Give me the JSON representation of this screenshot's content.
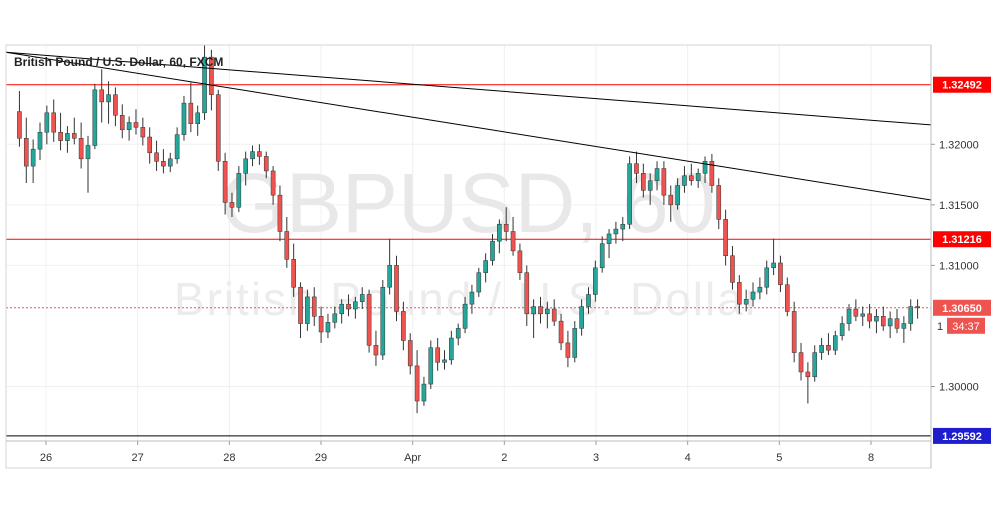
{
  "chart_data": {
    "type": "candlestick",
    "title": "British Pound / U.S. Dollar, 60, FXCM",
    "watermark": {
      "symbol": "GBPUSD, 60",
      "name": "British Pound / U.S. Dollar"
    },
    "x_tick_labels": [
      "26",
      "27",
      "28",
      "29",
      "Apr",
      "2",
      "3",
      "4",
      "5",
      "8"
    ],
    "y_tick_labels": [
      "1.32000",
      "1.31500",
      "1.31000",
      "1.30000"
    ],
    "y_ticks": [
      1.32,
      1.315,
      1.31,
      1.3
    ],
    "ylim": [
      1.2955,
      1.3282
    ],
    "grid": true,
    "colors": {
      "up": "#26a69a",
      "down": "#ef5350",
      "wick": "#333333",
      "level_line": "#ff0000",
      "trendline": "#000000",
      "current_price_label": "#ef5350",
      "bottom_label": "#1e1ecf"
    },
    "horizontal_levels": [
      {
        "value": 1.32492,
        "label": "1.32492"
      },
      {
        "value": 1.31216,
        "label": "1.31216"
      },
      {
        "value": 1.29592,
        "label": "1.29592",
        "color": "blue"
      }
    ],
    "current_price": {
      "value": 1.3065,
      "label": "1.30650",
      "countdown": "34:37",
      "truncated_label": "1"
    },
    "trendlines": [
      {
        "from": {
          "x": "Mar 26 00:00",
          "y": 1.3276
        },
        "to": {
          "x": "Apr 8 (last)",
          "y": 1.3216
        }
      },
      {
        "from": {
          "x": "Mar 26 00:00",
          "y": 1.3276
        },
        "to": {
          "x": "Apr 8 (last)",
          "y": 1.3154
        }
      }
    ],
    "candles": [
      [
        1.3227,
        1.3244,
        1.3198,
        1.3205
      ],
      [
        1.3205,
        1.3222,
        1.3168,
        1.3182
      ],
      [
        1.3182,
        1.3204,
        1.3168,
        1.3196
      ],
      [
        1.3196,
        1.3218,
        1.3187,
        1.321
      ],
      [
        1.321,
        1.3232,
        1.32,
        1.3226
      ],
      [
        1.3226,
        1.3237,
        1.3202,
        1.321
      ],
      [
        1.321,
        1.3226,
        1.3195,
        1.3203
      ],
      [
        1.3203,
        1.3215,
        1.3193,
        1.3209
      ],
      [
        1.3209,
        1.3222,
        1.32,
        1.3205
      ],
      [
        1.3205,
        1.3218,
        1.318,
        1.3188
      ],
      [
        1.3188,
        1.3207,
        1.316,
        1.3199
      ],
      [
        1.3199,
        1.325,
        1.3196,
        1.3245
      ],
      [
        1.3245,
        1.3262,
        1.3218,
        1.3235
      ],
      [
        1.3235,
        1.3252,
        1.3217,
        1.3241
      ],
      [
        1.3241,
        1.3247,
        1.3215,
        1.3224
      ],
      [
        1.3224,
        1.3233,
        1.3205,
        1.3212
      ],
      [
        1.3212,
        1.3223,
        1.3203,
        1.3218
      ],
      [
        1.3218,
        1.3229,
        1.3208,
        1.3214
      ],
      [
        1.3214,
        1.3222,
        1.3199,
        1.3206
      ],
      [
        1.3206,
        1.3214,
        1.3184,
        1.3193
      ],
      [
        1.3193,
        1.3203,
        1.3178,
        1.3186
      ],
      [
        1.3186,
        1.3196,
        1.3176,
        1.3182
      ],
      [
        1.3182,
        1.3193,
        1.3177,
        1.3188
      ],
      [
        1.3188,
        1.3214,
        1.3184,
        1.3208
      ],
      [
        1.3208,
        1.324,
        1.3203,
        1.3234
      ],
      [
        1.3234,
        1.3251,
        1.321,
        1.3217
      ],
      [
        1.3217,
        1.3232,
        1.3207,
        1.3226
      ],
      [
        1.3226,
        1.3282,
        1.322,
        1.3272
      ],
      [
        1.3272,
        1.3278,
        1.3228,
        1.3241
      ],
      [
        1.3241,
        1.3245,
        1.3178,
        1.3186
      ],
      [
        1.3186,
        1.3193,
        1.3142,
        1.3152
      ],
      [
        1.3152,
        1.316,
        1.314,
        1.3148
      ],
      [
        1.3148,
        1.3182,
        1.3144,
        1.3176
      ],
      [
        1.3176,
        1.3194,
        1.3166,
        1.3188
      ],
      [
        1.3188,
        1.3199,
        1.3182,
        1.3194
      ],
      [
        1.3194,
        1.32,
        1.3183,
        1.319
      ],
      [
        1.319,
        1.3194,
        1.3172,
        1.3178
      ],
      [
        1.3178,
        1.3182,
        1.315,
        1.3158
      ],
      [
        1.3158,
        1.3166,
        1.312,
        1.3128
      ],
      [
        1.3128,
        1.314,
        1.3098,
        1.3105
      ],
      [
        1.3105,
        1.3118,
        1.3074,
        1.3082
      ],
      [
        1.3082,
        1.3086,
        1.304,
        1.3052
      ],
      [
        1.3052,
        1.308,
        1.3046,
        1.3074
      ],
      [
        1.3074,
        1.3082,
        1.305,
        1.3058
      ],
      [
        1.3058,
        1.3066,
        1.3036,
        1.3045
      ],
      [
        1.3045,
        1.306,
        1.304,
        1.3053
      ],
      [
        1.3053,
        1.3066,
        1.3048,
        1.306
      ],
      [
        1.306,
        1.3072,
        1.3052,
        1.3068
      ],
      [
        1.3068,
        1.3076,
        1.3058,
        1.3064
      ],
      [
        1.3064,
        1.3074,
        1.3056,
        1.307
      ],
      [
        1.307,
        1.3082,
        1.3064,
        1.3076
      ],
      [
        1.3076,
        1.308,
        1.3028,
        1.3034
      ],
      [
        1.3034,
        1.3046,
        1.3017,
        1.3026
      ],
      [
        1.3026,
        1.3088,
        1.3022,
        1.3082
      ],
      [
        1.3082,
        1.3122,
        1.3076,
        1.31
      ],
      [
        1.31,
        1.3108,
        1.3054,
        1.3062
      ],
      [
        1.3062,
        1.307,
        1.303,
        1.3038
      ],
      [
        1.3038,
        1.3044,
        1.301,
        1.3017
      ],
      [
        1.3017,
        1.303,
        1.2978,
        1.2988
      ],
      [
        1.2988,
        1.3008,
        1.2984,
        1.3002
      ],
      [
        1.3002,
        1.3038,
        1.2998,
        1.3032
      ],
      [
        1.3032,
        1.304,
        1.3013,
        1.302
      ],
      [
        1.302,
        1.303,
        1.3014,
        1.3022
      ],
      [
        1.3022,
        1.3046,
        1.3018,
        1.304
      ],
      [
        1.304,
        1.3052,
        1.3034,
        1.3048
      ],
      [
        1.3048,
        1.3074,
        1.3044,
        1.3068
      ],
      [
        1.3068,
        1.3084,
        1.306,
        1.3078
      ],
      [
        1.3078,
        1.3098,
        1.3074,
        1.3094
      ],
      [
        1.3094,
        1.311,
        1.3086,
        1.3104
      ],
      [
        1.3104,
        1.3126,
        1.31,
        1.312
      ],
      [
        1.312,
        1.3138,
        1.311,
        1.3134
      ],
      [
        1.3134,
        1.3148,
        1.312,
        1.3128
      ],
      [
        1.3128,
        1.314,
        1.3108,
        1.3112
      ],
      [
        1.3112,
        1.3118,
        1.3088,
        1.3094
      ],
      [
        1.3094,
        1.31,
        1.305,
        1.306
      ],
      [
        1.306,
        1.3072,
        1.304,
        1.3066
      ],
      [
        1.3066,
        1.3074,
        1.3052,
        1.306
      ],
      [
        1.306,
        1.307,
        1.3048,
        1.3064
      ],
      [
        1.3064,
        1.3072,
        1.305,
        1.3054
      ],
      [
        1.3054,
        1.306,
        1.303,
        1.3036
      ],
      [
        1.3036,
        1.3046,
        1.3016,
        1.3024
      ],
      [
        1.3024,
        1.3054,
        1.302,
        1.3048
      ],
      [
        1.3048,
        1.3072,
        1.3042,
        1.3066
      ],
      [
        1.3066,
        1.3082,
        1.306,
        1.3076
      ],
      [
        1.3076,
        1.3104,
        1.307,
        1.3098
      ],
      [
        1.3098,
        1.3124,
        1.3094,
        1.3118
      ],
      [
        1.3118,
        1.313,
        1.3106,
        1.3126
      ],
      [
        1.3126,
        1.3136,
        1.3118,
        1.313
      ],
      [
        1.313,
        1.314,
        1.312,
        1.3134
      ],
      [
        1.3134,
        1.319,
        1.313,
        1.3184
      ],
      [
        1.3184,
        1.3194,
        1.3168,
        1.3176
      ],
      [
        1.3176,
        1.3184,
        1.3156,
        1.3162
      ],
      [
        1.3162,
        1.3176,
        1.315,
        1.317
      ],
      [
        1.317,
        1.3186,
        1.3162,
        1.318
      ],
      [
        1.318,
        1.3186,
        1.315,
        1.3158
      ],
      [
        1.3158,
        1.3166,
        1.3136,
        1.315
      ],
      [
        1.315,
        1.3172,
        1.3146,
        1.3166
      ],
      [
        1.3166,
        1.3182,
        1.316,
        1.3174
      ],
      [
        1.3174,
        1.3184,
        1.3166,
        1.317
      ],
      [
        1.317,
        1.318,
        1.3164,
        1.3176
      ],
      [
        1.3176,
        1.319,
        1.3168,
        1.3186
      ],
      [
        1.3186,
        1.3192,
        1.316,
        1.3166
      ],
      [
        1.3166,
        1.3172,
        1.313,
        1.3138
      ],
      [
        1.3138,
        1.3146,
        1.31,
        1.3108
      ],
      [
        1.3108,
        1.3116,
        1.308,
        1.3086
      ],
      [
        1.3086,
        1.3092,
        1.306,
        1.3068
      ],
      [
        1.3068,
        1.308,
        1.3062,
        1.3072
      ],
      [
        1.3072,
        1.3086,
        1.3066,
        1.3078
      ],
      [
        1.3078,
        1.309,
        1.3072,
        1.3082
      ],
      [
        1.3082,
        1.3104,
        1.3076,
        1.3098
      ],
      [
        1.3098,
        1.3122,
        1.3092,
        1.3102
      ],
      [
        1.3102,
        1.3108,
        1.3078,
        1.3084
      ],
      [
        1.3084,
        1.309,
        1.3058,
        1.3062
      ],
      [
        1.3062,
        1.307,
        1.302,
        1.3028
      ],
      [
        1.3028,
        1.3036,
        1.3005,
        1.3012
      ],
      [
        1.3012,
        1.302,
        1.2986,
        1.3008
      ],
      [
        1.3008,
        1.3034,
        1.3004,
        1.3028
      ],
      [
        1.3028,
        1.304,
        1.3022,
        1.3034
      ],
      [
        1.3034,
        1.3044,
        1.3026,
        1.303
      ],
      [
        1.303,
        1.3046,
        1.3026,
        1.3042
      ],
      [
        1.3042,
        1.3058,
        1.3038,
        1.3052
      ],
      [
        1.3052,
        1.3068,
        1.3046,
        1.3064
      ],
      [
        1.3064,
        1.3072,
        1.3054,
        1.3058
      ],
      [
        1.3058,
        1.3066,
        1.305,
        1.306
      ],
      [
        1.306,
        1.3068,
        1.3048,
        1.3054
      ],
      [
        1.3054,
        1.3064,
        1.3044,
        1.3058
      ],
      [
        1.3058,
        1.3066,
        1.3046,
        1.305
      ],
      [
        1.305,
        1.3062,
        1.304,
        1.3056
      ],
      [
        1.3056,
        1.3064,
        1.3044,
        1.3048
      ],
      [
        1.3048,
        1.3058,
        1.3036,
        1.3052
      ],
      [
        1.3052,
        1.3072,
        1.3046,
        1.3066
      ],
      [
        1.3066,
        1.3072,
        1.3056,
        1.3065
      ]
    ]
  }
}
